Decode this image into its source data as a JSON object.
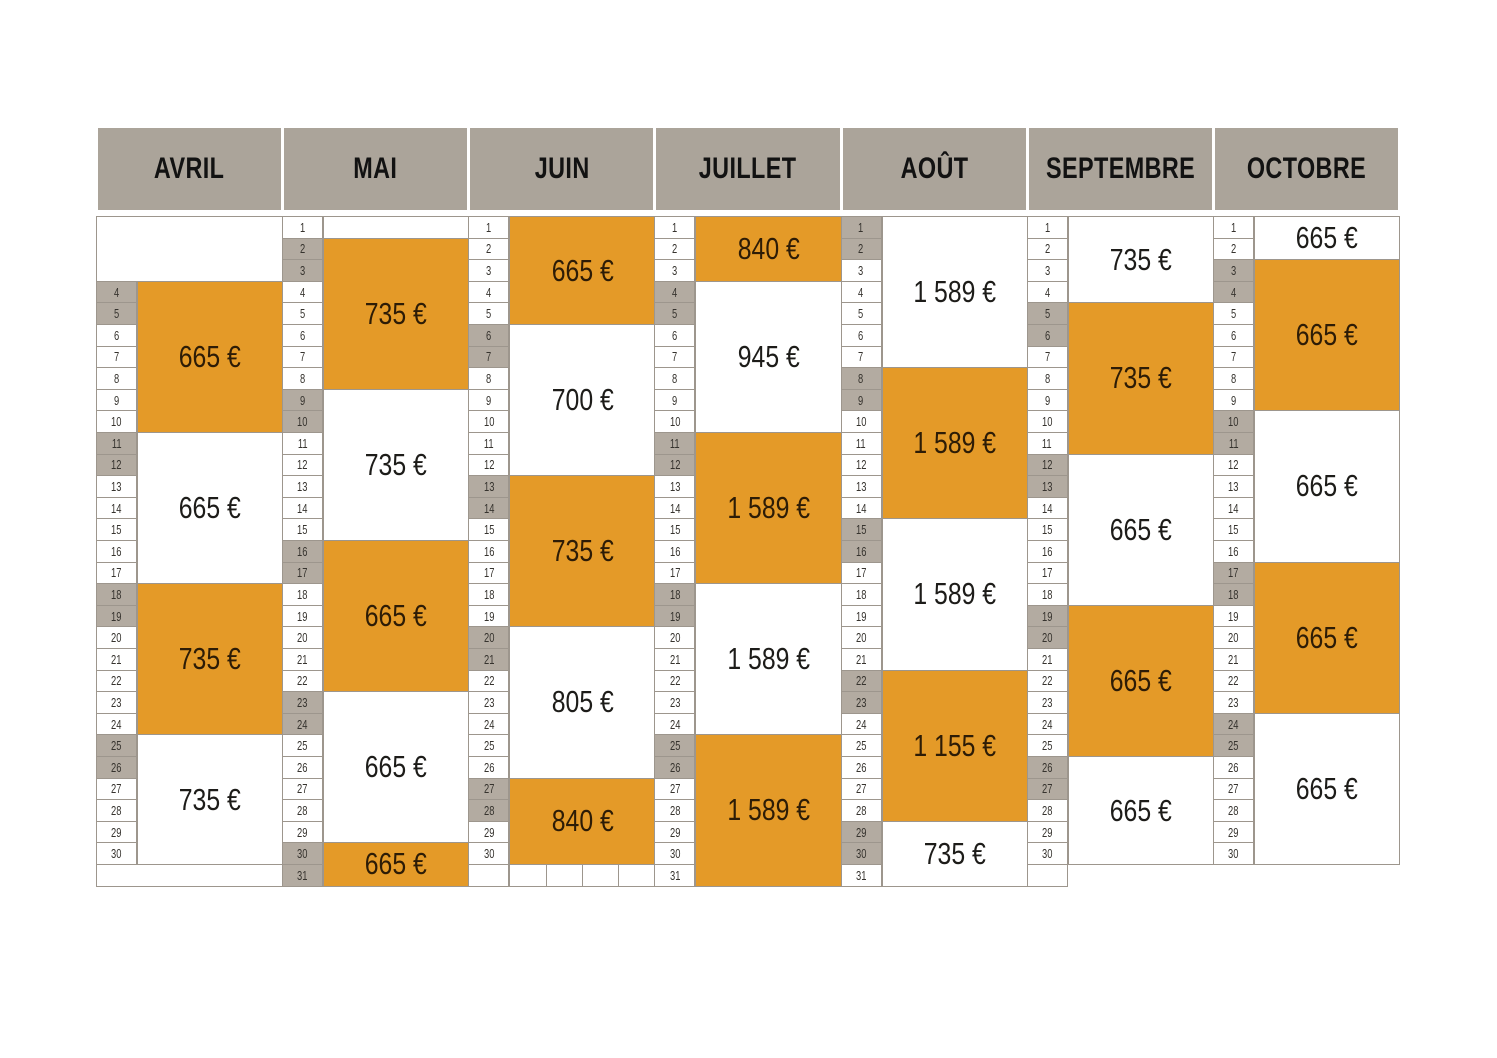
{
  "document": {
    "type": "seasonal-price-calendar",
    "currency_symbol": "€"
  },
  "colors": {
    "accent_orange": "#e49a28",
    "header_gray": "#aba49a",
    "weekend_gray": "#b3aba1",
    "border_gray": "#9d968d",
    "text_dark": "#1d1c19"
  },
  "months": [
    {
      "name": "AVRIL",
      "first_day": 4,
      "last_day": 30,
      "weekend_days": [
        4,
        5,
        11,
        12,
        18,
        19,
        25,
        26
      ],
      "lead": {
        "type": "merged",
        "rows": 3
      },
      "trail": {
        "type": "merged",
        "rows": 1
      },
      "blocks": [
        {
          "from": 4,
          "to": 10,
          "price": "665 €",
          "filled": true
        },
        {
          "from": 11,
          "to": 17,
          "price": "665 €",
          "filled": false
        },
        {
          "from": 18,
          "to": 24,
          "price": "735 €",
          "filled": true
        },
        {
          "from": 25,
          "to": 30,
          "price": "735 €",
          "filled": false
        }
      ]
    },
    {
      "name": "MAI",
      "first_day": 1,
      "last_day": 31,
      "weekend_days": [
        2,
        3,
        9,
        10,
        16,
        17,
        23,
        24,
        30,
        31
      ],
      "lead": {
        "type": "none"
      },
      "trail": {
        "type": "none"
      },
      "blocks": [
        {
          "from": 1,
          "to": 1,
          "price": "",
          "filled": false
        },
        {
          "from": 2,
          "to": 8,
          "price": "735 €",
          "filled": true
        },
        {
          "from": 9,
          "to": 15,
          "price": "735 €",
          "filled": false
        },
        {
          "from": 16,
          "to": 22,
          "price": "665 €",
          "filled": true
        },
        {
          "from": 23,
          "to": 29,
          "price": "665 €",
          "filled": false
        },
        {
          "from": 30,
          "to": 31,
          "price": "665 €",
          "filled": true
        }
      ]
    },
    {
      "name": "JUIN",
      "first_day": 1,
      "last_day": 30,
      "weekend_days": [
        6,
        7,
        13,
        14,
        20,
        21,
        27,
        28
      ],
      "lead": {
        "type": "none"
      },
      "trail": {
        "type": "cells",
        "cells": 4
      },
      "blocks": [
        {
          "from": 1,
          "to": 5,
          "price": "665 €",
          "filled": true
        },
        {
          "from": 6,
          "to": 12,
          "price": "700 €",
          "filled": false
        },
        {
          "from": 13,
          "to": 19,
          "price": "735 €",
          "filled": true
        },
        {
          "from": 20,
          "to": 26,
          "price": "805 €",
          "filled": false
        },
        {
          "from": 27,
          "to": 30,
          "price": "840 €",
          "filled": true
        }
      ]
    },
    {
      "name": "JUILLET",
      "first_day": 1,
      "last_day": 31,
      "weekend_days": [
        4,
        5,
        11,
        12,
        18,
        19,
        25,
        26
      ],
      "lead": {
        "type": "none"
      },
      "trail": {
        "type": "none"
      },
      "blocks": [
        {
          "from": 1,
          "to": 3,
          "price": "840 €",
          "filled": true
        },
        {
          "from": 4,
          "to": 10,
          "price": "945 €",
          "filled": false
        },
        {
          "from": 11,
          "to": 17,
          "price": "1 589 €",
          "filled": true
        },
        {
          "from": 18,
          "to": 24,
          "price": "1 589 €",
          "filled": false
        },
        {
          "from": 25,
          "to": 31,
          "price": "1 589 €",
          "filled": true
        }
      ]
    },
    {
      "name": "AOÛT",
      "first_day": 1,
      "last_day": 31,
      "weekend_days": [
        1,
        2,
        8,
        9,
        15,
        16,
        22,
        23,
        29,
        30
      ],
      "lead": {
        "type": "none"
      },
      "trail": {
        "type": "none"
      },
      "blocks": [
        {
          "from": 1,
          "to": 7,
          "price": "1 589 €",
          "filled": false
        },
        {
          "from": 8,
          "to": 14,
          "price": "1 589 €",
          "filled": true
        },
        {
          "from": 15,
          "to": 21,
          "price": "1 589 €",
          "filled": false
        },
        {
          "from": 22,
          "to": 28,
          "price": "1 155 €",
          "filled": true
        },
        {
          "from": 29,
          "to": 31,
          "price": "735 €",
          "filled": false
        }
      ]
    },
    {
      "name": "SEPTEMBRE",
      "first_day": 1,
      "last_day": 30,
      "weekend_days": [
        5,
        6,
        12,
        13,
        19,
        20,
        26,
        27
      ],
      "lead": {
        "type": "none"
      },
      "trail": {
        "type": "strip",
        "rows": 1
      },
      "blocks": [
        {
          "from": 1,
          "to": 4,
          "price": "735 €",
          "filled": false
        },
        {
          "from": 5,
          "to": 11,
          "price": "735 €",
          "filled": true
        },
        {
          "from": 12,
          "to": 18,
          "price": "665 €",
          "filled": false
        },
        {
          "from": 19,
          "to": 25,
          "price": "665 €",
          "filled": true
        },
        {
          "from": 26,
          "to": 30,
          "price": "665 €",
          "filled": false
        }
      ]
    },
    {
      "name": "OCTOBRE",
      "first_day": 1,
      "last_day": 30,
      "weekend_days": [
        3,
        4,
        10,
        11,
        17,
        18,
        24,
        25
      ],
      "lead": {
        "type": "none"
      },
      "trail": {
        "type": "none"
      },
      "blocks": [
        {
          "from": 1,
          "to": 2,
          "price": "665 €",
          "filled": false
        },
        {
          "from": 3,
          "to": 9,
          "price": "665 €",
          "filled": true
        },
        {
          "from": 10,
          "to": 16,
          "price": "665 €",
          "filled": false
        },
        {
          "from": 17,
          "to": 23,
          "price": "665 €",
          "filled": true
        },
        {
          "from": 24,
          "to": 30,
          "price": "665 €",
          "filled": false
        }
      ]
    }
  ]
}
